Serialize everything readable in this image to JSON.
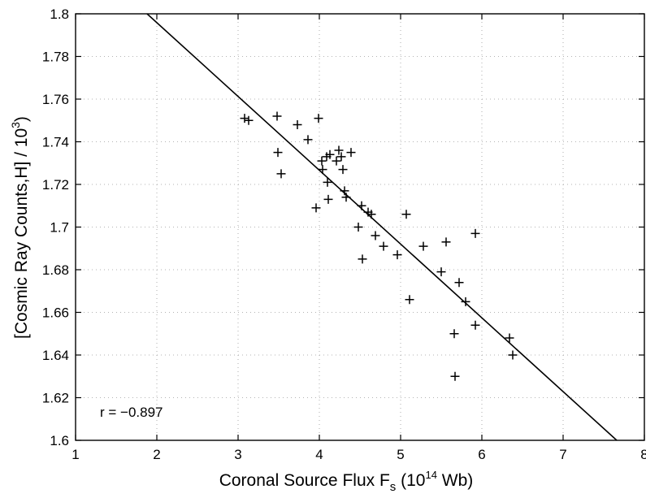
{
  "chart_data": {
    "type": "scatter",
    "title": "",
    "xlabel": {
      "main": "Coronal Source Flux F",
      "sub": "s",
      "unit_prefix": " (10",
      "unit_sup": "14",
      "unit_suffix": " Wb)"
    },
    "ylabel": {
      "main": "[Cosmic Ray Counts,H] / 10",
      "sup": "3",
      "suffix": ")"
    },
    "xlim": [
      1,
      8
    ],
    "ylim": [
      1.6,
      1.8
    ],
    "x_ticks": [
      "1",
      "2",
      "3",
      "4",
      "5",
      "6",
      "7",
      "8"
    ],
    "y_ticks": [
      "1.6",
      "1.62",
      "1.64",
      "1.66",
      "1.68",
      "1.7",
      "1.72",
      "1.74",
      "1.76",
      "1.78",
      "1.8"
    ],
    "grid": true,
    "marker": "+",
    "annotation": "r = −0.897",
    "fit_line": {
      "x": [
        1.88,
        7.66
      ],
      "y": [
        1.8,
        1.6
      ]
    },
    "points": [
      [
        3.08,
        1.751
      ],
      [
        3.13,
        1.75
      ],
      [
        3.48,
        1.752
      ],
      [
        3.49,
        1.735
      ],
      [
        3.53,
        1.725
      ],
      [
        3.73,
        1.748
      ],
      [
        3.86,
        1.741
      ],
      [
        3.96,
        1.709
      ],
      [
        3.99,
        1.751
      ],
      [
        4.03,
        1.731
      ],
      [
        4.04,
        1.727
      ],
      [
        4.09,
        1.733
      ],
      [
        4.1,
        1.721
      ],
      [
        4.11,
        1.713
      ],
      [
        4.13,
        1.734
      ],
      [
        4.21,
        1.731
      ],
      [
        4.24,
        1.736
      ],
      [
        4.27,
        1.733
      ],
      [
        4.29,
        1.727
      ],
      [
        4.31,
        1.717
      ],
      [
        4.33,
        1.714
      ],
      [
        4.39,
        1.735
      ],
      [
        4.48,
        1.7
      ],
      [
        4.52,
        1.71
      ],
      [
        4.53,
        1.685
      ],
      [
        4.6,
        1.707
      ],
      [
        4.64,
        1.706
      ],
      [
        4.69,
        1.696
      ],
      [
        4.79,
        1.691
      ],
      [
        4.96,
        1.687
      ],
      [
        5.07,
        1.706
      ],
      [
        5.11,
        1.666
      ],
      [
        5.28,
        1.691
      ],
      [
        5.5,
        1.679
      ],
      [
        5.56,
        1.693
      ],
      [
        5.66,
        1.65
      ],
      [
        5.67,
        1.63
      ],
      [
        5.72,
        1.674
      ],
      [
        5.8,
        1.665
      ],
      [
        5.92,
        1.654
      ],
      [
        5.92,
        1.697
      ],
      [
        6.34,
        1.648
      ],
      [
        6.38,
        1.64
      ]
    ]
  }
}
